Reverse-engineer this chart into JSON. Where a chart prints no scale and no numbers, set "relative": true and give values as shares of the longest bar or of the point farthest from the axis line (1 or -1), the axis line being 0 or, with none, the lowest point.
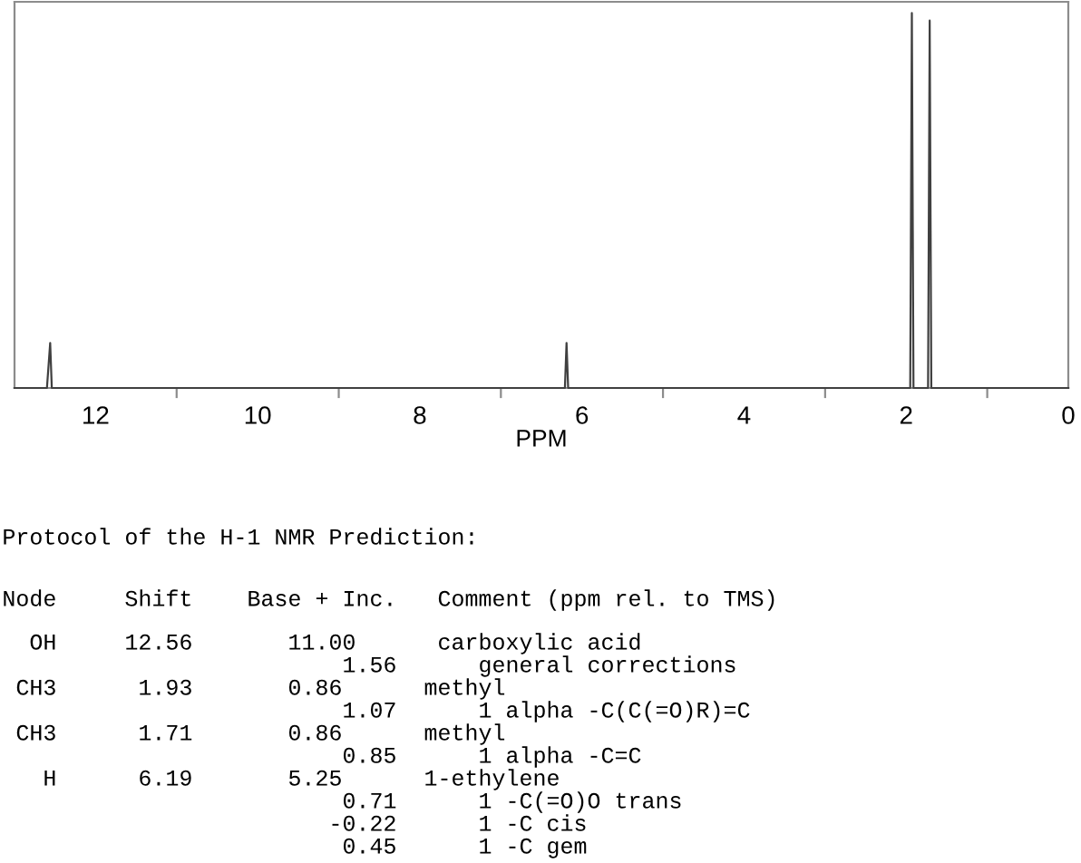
{
  "chart_data": {
    "type": "line",
    "xlabel": "PPM",
    "relative": true,
    "color": "#404040",
    "x": [
      13,
      12.6,
      12.56,
      12.54,
      6.21,
      6.19,
      6.17,
      1.95,
      1.93,
      1.91,
      1.73,
      1.71,
      1.69,
      0
    ],
    "values": [
      0,
      0,
      0.12,
      0,
      0,
      0.12,
      0,
      0,
      1,
      0,
      0,
      0.98,
      0,
      0
    ],
    "xlim": [
      13,
      0
    ],
    "xticks": [
      12,
      {
        "value": 11,
        "label": null
      },
      10,
      {
        "value": 9,
        "label": null
      },
      8,
      {
        "value": 7,
        "label": null
      },
      6,
      {
        "value": 5,
        "label": null
      },
      4,
      {
        "value": 3,
        "label": null
      },
      2,
      {
        "value": 1,
        "label": null
      },
      0
    ],
    "annotations": [
      "Protocol of the H-1 NMR Prediction:",
      "Node     Shift    Base + Inc.   Comment (ppm rel. to TMS)",
      "  OH     12.56       11.00      carboxylic acid",
      "                         1.56      general corrections",
      " CH3      1.93       0.86      methyl",
      "                         1.07      1 alpha -C(C(=O)R)=C",
      " CH3      1.71       0.86      methyl",
      "                         0.85      1 alpha -C=C",
      "   H      6.19       5.25      1-ethylene",
      "                         0.71      1 -C(=O)O trans",
      "                        -0.22      1 -C cis",
      "                         0.45      1 -C gem"
    ]
  }
}
